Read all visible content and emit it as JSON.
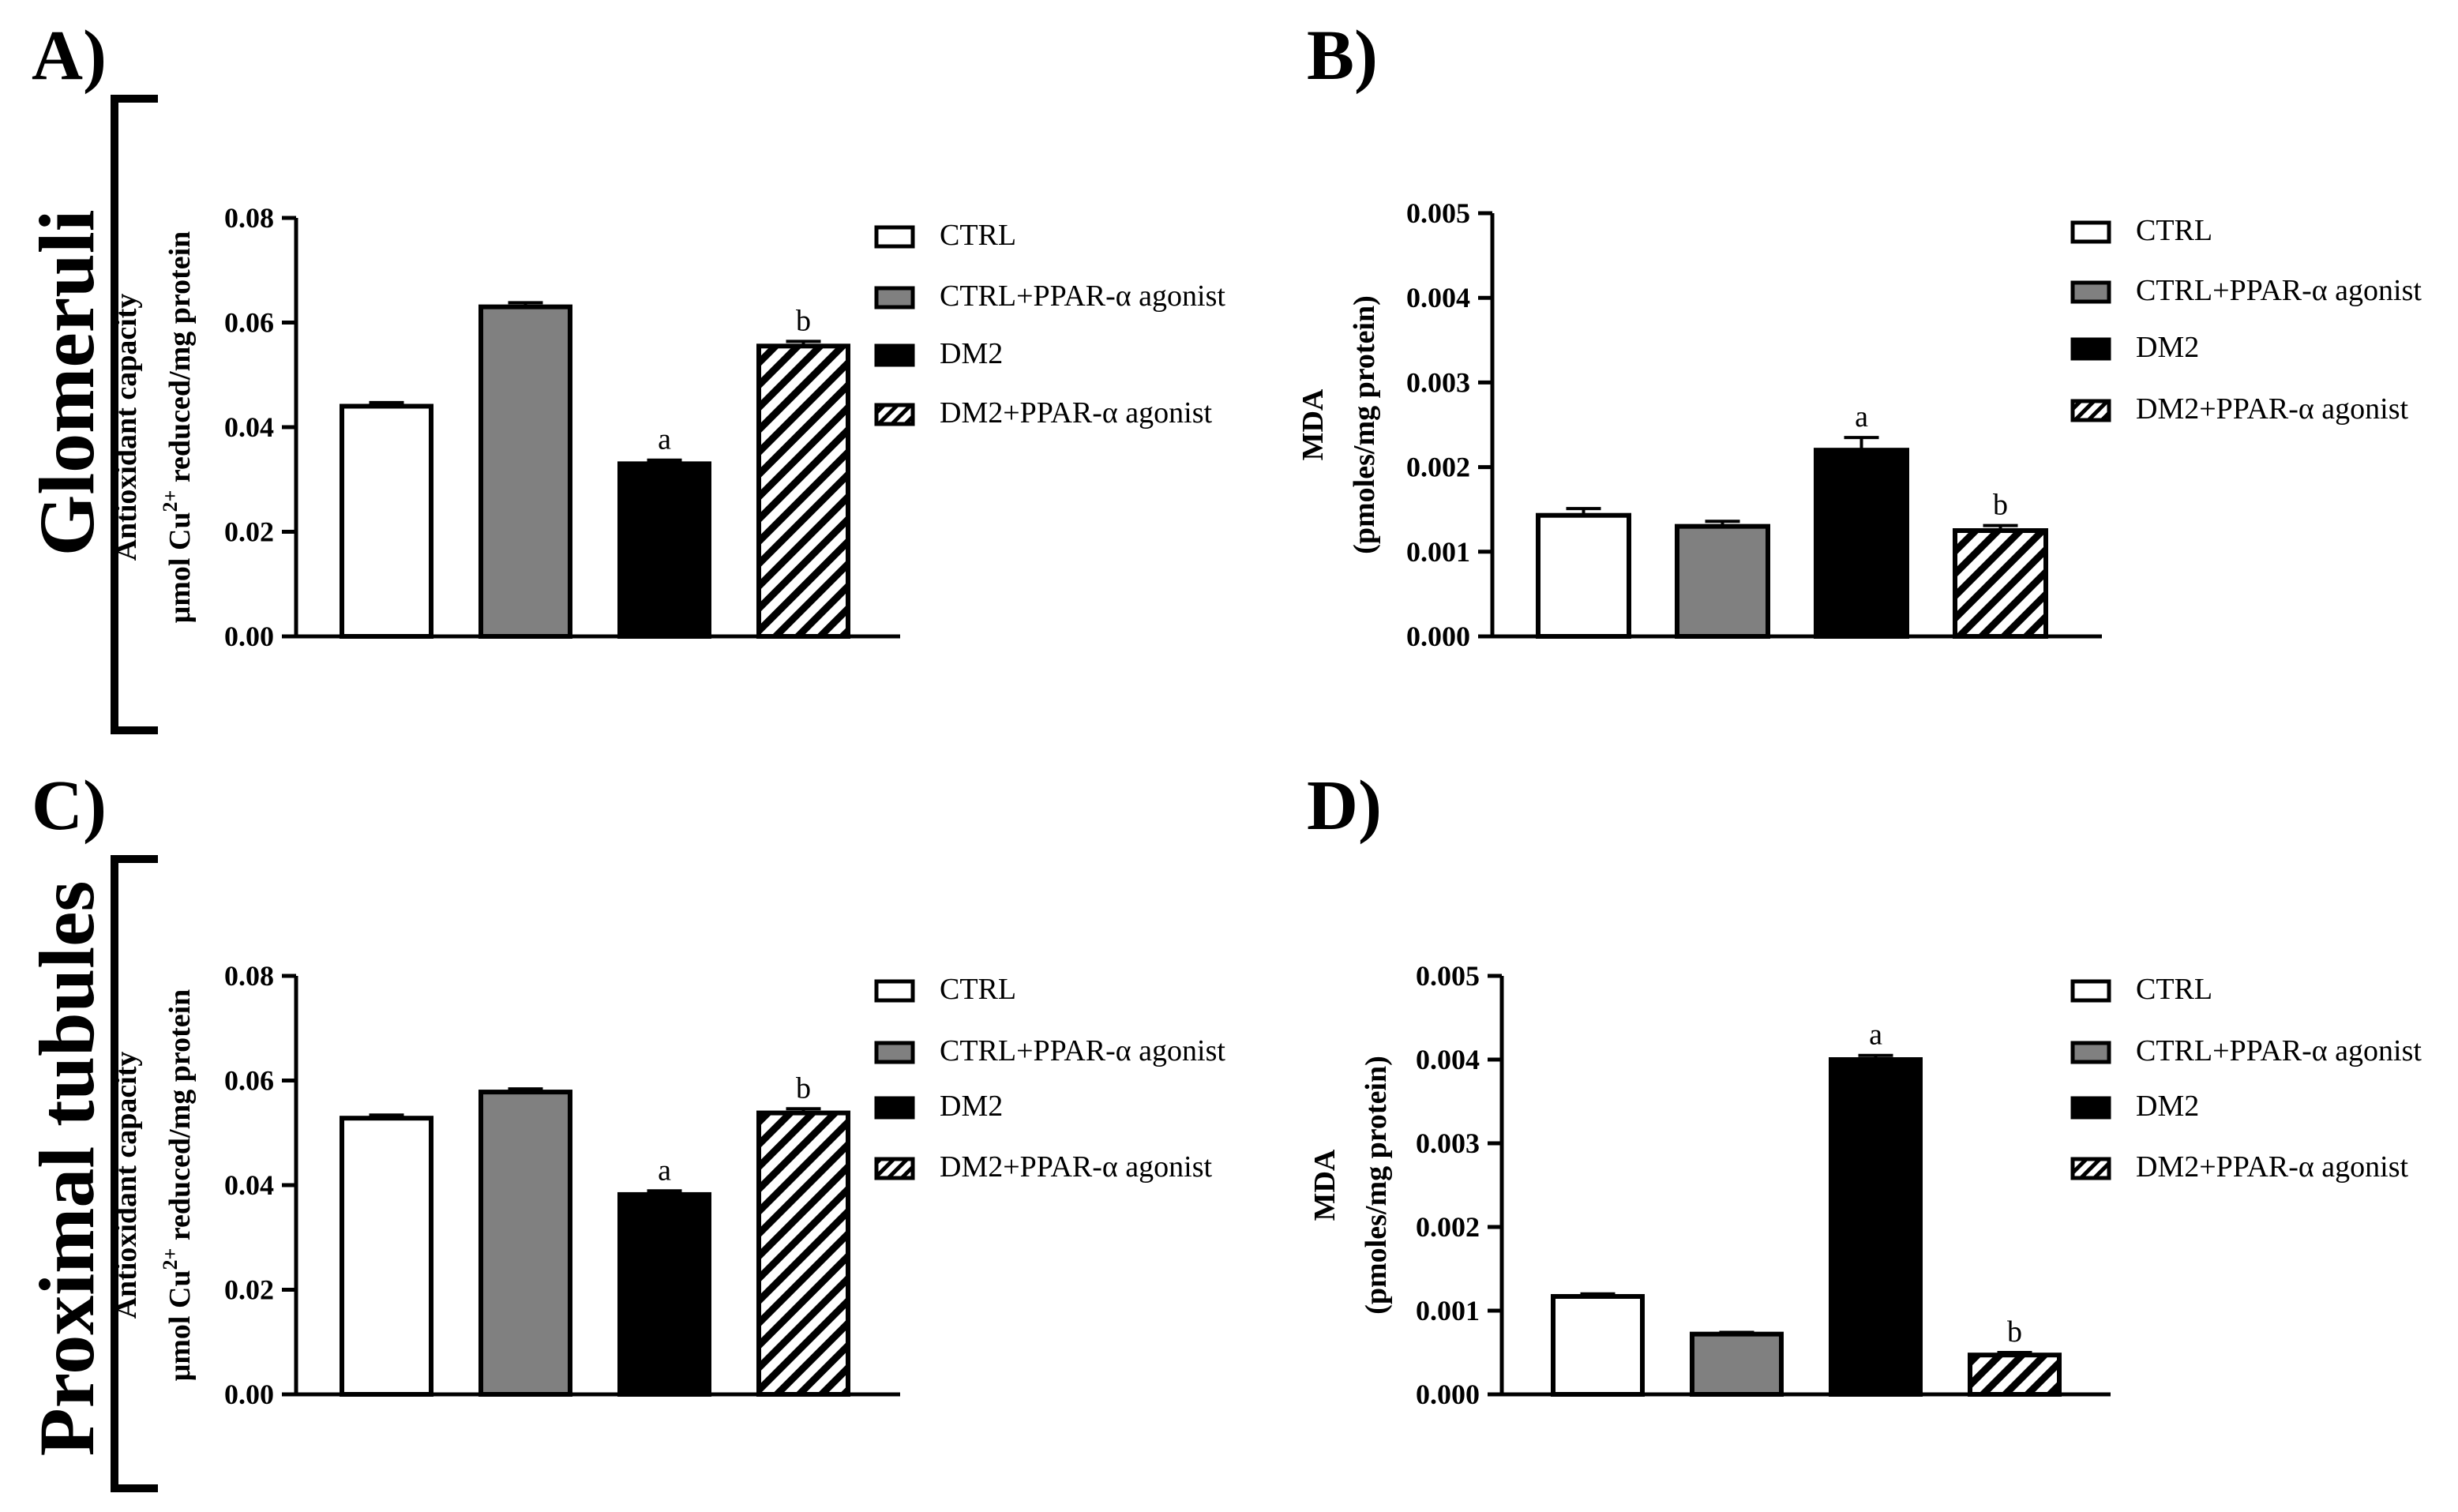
{
  "figure": {
    "section_labels": [
      "Glomeruli",
      "Proximal tubules"
    ],
    "legend": [
      {
        "label": "CTRL",
        "pattern": "white"
      },
      {
        "label": "CTRL+PPAR-α agonist",
        "pattern": "gray"
      },
      {
        "label": "DM2",
        "pattern": "black"
      },
      {
        "label": "DM2+PPAR-α agonist",
        "pattern": "hatched"
      }
    ],
    "colors": {
      "gray": "#808080",
      "black": "#000000",
      "white": "#ffffff"
    }
  },
  "chart_data": [
    {
      "panel": "A)",
      "type": "bar",
      "categories": [
        "CTRL",
        "CTRL+PPAR-α agonist",
        "DM2",
        "DM2+PPAR-α agonist"
      ],
      "values": [
        0.044,
        0.063,
        0.033,
        0.0555
      ],
      "errors": [
        0.0007,
        0.0008,
        0.0007,
        0.0009
      ],
      "annotations": [
        "",
        "",
        "a",
        "b"
      ],
      "ylabel_line1": "Antioxidant capacity",
      "ylabel_line2_pre": "μmol Cu",
      "ylabel_sup": "2+",
      "ylabel_line2_post": " reduced/mg protein",
      "ylim": [
        0,
        0.08
      ],
      "yticks": [
        "0.00",
        "0.02",
        "0.04",
        "0.06",
        "0.08"
      ]
    },
    {
      "panel": "B)",
      "type": "bar",
      "categories": [
        "CTRL",
        "CTRL+PPAR-α agonist",
        "DM2",
        "DM2+PPAR-α agonist"
      ],
      "values": [
        0.00143,
        0.0013,
        0.0022,
        0.00125
      ],
      "errors": [
        8e-05,
        6e-05,
        0.00015,
        6e-05
      ],
      "annotations": [
        "",
        "",
        "a",
        "b"
      ],
      "ylabel_line1": "MDA",
      "ylabel_line2": "(pmoles/mg protein)",
      "ylim": [
        0,
        0.005
      ],
      "yticks": [
        "0.000",
        "0.001",
        "0.002",
        "0.003",
        "0.004",
        "0.005"
      ]
    },
    {
      "panel": "C)",
      "type": "bar",
      "categories": [
        "CTRL",
        "CTRL+PPAR-α agonist",
        "DM2",
        "DM2+PPAR-α agonist"
      ],
      "values": [
        0.0528,
        0.0578,
        0.0382,
        0.0538
      ],
      "errors": [
        0.0006,
        0.0006,
        0.0007,
        0.0008
      ],
      "annotations": [
        "",
        "",
        "a",
        "b"
      ],
      "ylabel_line1": "Antioxidant capacity",
      "ylabel_line2_pre": "μmol Cu",
      "ylabel_sup": "2+",
      "ylabel_line2_post": " reduced/mg protein",
      "ylim": [
        0,
        0.08
      ],
      "yticks": [
        "0.00",
        "0.02",
        "0.04",
        "0.06",
        "0.08"
      ]
    },
    {
      "panel": "D)",
      "type": "bar",
      "categories": [
        "CTRL",
        "CTRL+PPAR-α agonist",
        "DM2",
        "DM2+PPAR-α agonist"
      ],
      "values": [
        0.00117,
        0.00072,
        0.004,
        0.00047
      ],
      "errors": [
        3e-05,
        2e-05,
        5e-05,
        3e-05
      ],
      "annotations": [
        "",
        "",
        "a",
        "b"
      ],
      "ylabel_line1": "MDA",
      "ylabel_line2": "(pmoles/mg protein)",
      "ylim": [
        0,
        0.005
      ],
      "yticks": [
        "0.000",
        "0.001",
        "0.002",
        "0.003",
        "0.004",
        "0.005"
      ]
    }
  ]
}
